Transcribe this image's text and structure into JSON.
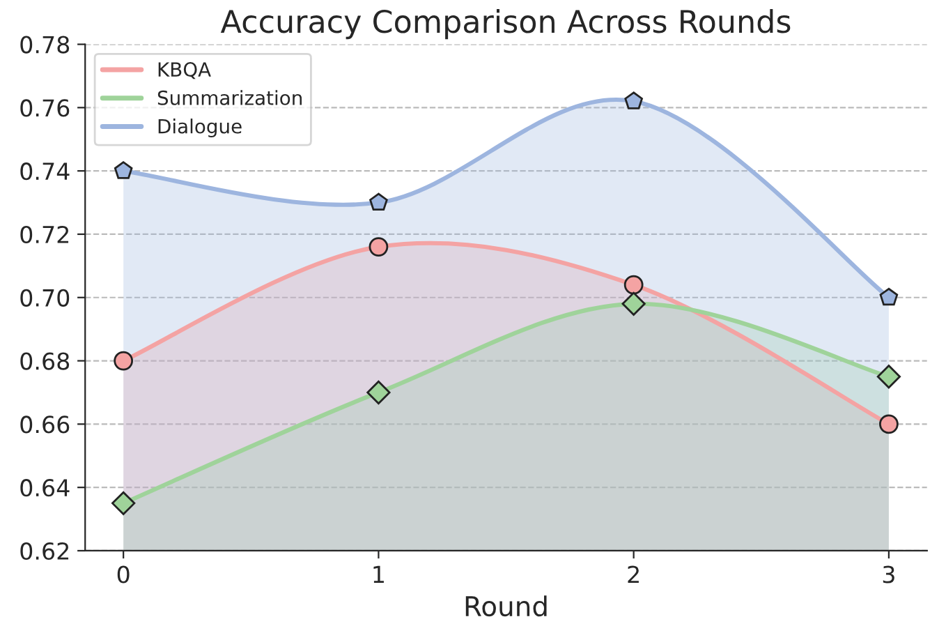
{
  "chart_data": {
    "type": "area",
    "title": "Accuracy Comparison Across Rounds",
    "xlabel": "Round",
    "x": [
      0,
      1,
      2,
      3
    ],
    "xlim": [
      -0.15,
      3.15
    ],
    "xticks": [
      0,
      1,
      2,
      3
    ],
    "ylim": [
      0.62,
      0.78
    ],
    "yticks": [
      {
        "value": 0.62,
        "label": "0.62"
      },
      {
        "value": 0.64,
        "label": "0.64"
      },
      {
        "value": 0.66,
        "label": "0.66"
      },
      {
        "value": 0.68,
        "label": "0.68"
      },
      {
        "value": 0.7,
        "label": "0.70"
      },
      {
        "value": 0.72,
        "label": "0.72"
      },
      {
        "value": 0.74,
        "label": "0.74"
      },
      {
        "value": 0.76,
        "label": "0.76"
      },
      {
        "value": 0.78,
        "label": "0.78"
      }
    ],
    "grid": "y",
    "legend": "top left",
    "series": [
      {
        "name": "KBQA",
        "color": "#f4a3a3",
        "marker": "circle",
        "values": [
          0.68,
          0.716,
          0.704,
          0.66
        ]
      },
      {
        "name": "Summarization",
        "color": "#9fd39a",
        "marker": "diamond",
        "values": [
          0.635,
          0.67,
          0.698,
          0.675
        ]
      },
      {
        "name": "Dialogue",
        "color": "#9db5df",
        "values": [
          0.74,
          0.73,
          0.762,
          0.7
        ]
      }
    ]
  }
}
